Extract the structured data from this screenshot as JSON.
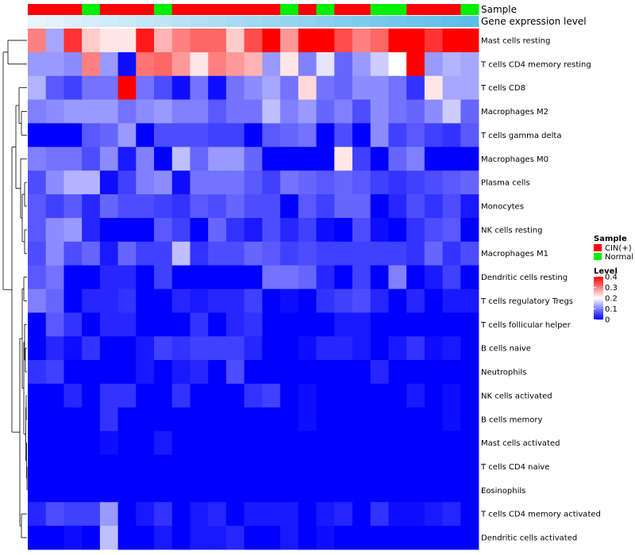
{
  "chart_data": {
    "type": "heatmap",
    "title": "",
    "annotation_labels": [
      "Sample",
      "Gene expression level"
    ],
    "sample_groups": [
      "CIN(+)",
      "CIN(+)",
      "CIN(+)",
      "Normal",
      "CIN(+)",
      "CIN(+)",
      "CIN(+)",
      "Normal",
      "CIN(+)",
      "CIN(+)",
      "CIN(+)",
      "CIN(+)",
      "CIN(+)",
      "CIN(+)",
      "Normal",
      "CIN(+)",
      "Normal",
      "CIN(+)",
      "CIN(+)",
      "Normal",
      "Normal",
      "CIN(+)",
      "CIN(+)",
      "CIN(+)",
      "Normal"
    ],
    "expression_level": [
      0.01,
      0.02,
      0.03,
      0.04,
      0.05,
      0.06,
      0.07,
      0.08,
      0.09,
      0.1,
      0.11,
      0.12,
      0.13,
      0.14,
      0.15,
      0.16,
      0.17,
      0.18,
      0.19,
      0.2,
      0.21,
      0.22,
      0.23,
      0.24,
      0.25
    ],
    "rows": [
      "Mast cells resting",
      "T cells CD4 memory resting",
      "T cells CD8",
      "Macrophages M2",
      "T cells gamma delta",
      "Macrophages M0",
      "Plasma cells",
      "Monocytes",
      "NK cells resting",
      "Macrophages M1",
      "Dendritic cells resting",
      "T cells regulatory  Tregs",
      "T cells follicular helper",
      "B cells naive",
      "Neutrophils",
      "NK cells activated",
      "B cells memory",
      "Mast cells activated",
      "T cells CD4 naive",
      "Eosinophils",
      "T cells CD4 memory activated",
      "Dendritic cells activated"
    ],
    "values": [
      [
        0.3,
        0.13,
        0.36,
        0.24,
        0.22,
        0.22,
        0.38,
        0.26,
        0.3,
        0.32,
        0.32,
        0.24,
        0.34,
        0.4,
        0.28,
        0.4,
        0.4,
        0.34,
        0.3,
        0.32,
        0.4,
        0.4,
        0.36,
        0.4,
        0.4
      ],
      [
        0.12,
        0.12,
        0.11,
        0.3,
        0.12,
        0.01,
        0.31,
        0.32,
        0.28,
        0.22,
        0.3,
        0.28,
        0.26,
        0.12,
        0.22,
        0.1,
        0.18,
        0.08,
        0.12,
        0.16,
        0.2,
        0.4,
        0.12,
        0.14,
        0.13
      ],
      [
        0.14,
        0.07,
        0.05,
        0.09,
        0.09,
        0.4,
        0.09,
        0.06,
        0.01,
        0.09,
        0.01,
        0.09,
        0.11,
        0.13,
        0.09,
        0.23,
        0.09,
        0.08,
        0.11,
        0.11,
        0.09,
        0.04,
        0.22,
        0.13,
        0.13
      ],
      [
        0.1,
        0.11,
        0.12,
        0.12,
        0.12,
        0.09,
        0.11,
        0.12,
        0.1,
        0.1,
        0.07,
        0.09,
        0.09,
        0.15,
        0.1,
        0.12,
        0.08,
        0.1,
        0.06,
        0.11,
        0.09,
        0.08,
        0.11,
        0.16,
        0.08
      ],
      [
        0.0,
        0.0,
        0.0,
        0.07,
        0.08,
        0.12,
        0.0,
        0.06,
        0.06,
        0.06,
        0.05,
        0.05,
        0.0,
        0.07,
        0.08,
        0.09,
        0.0,
        0.06,
        0.0,
        0.11,
        0.05,
        0.07,
        0.05,
        0.04,
        0.07
      ],
      [
        0.1,
        0.09,
        0.09,
        0.06,
        0.11,
        0.02,
        0.1,
        0.0,
        0.15,
        0.08,
        0.12,
        0.12,
        0.08,
        0.0,
        0.0,
        0.0,
        0.0,
        0.22,
        0.05,
        0.0,
        0.08,
        0.1,
        0.0,
        0.0,
        0.0
      ],
      [
        0.06,
        0.11,
        0.14,
        0.14,
        0.01,
        0.05,
        0.1,
        0.11,
        0.01,
        0.09,
        0.09,
        0.09,
        0.07,
        0.05,
        0.09,
        0.08,
        0.07,
        0.08,
        0.07,
        0.05,
        0.04,
        0.05,
        0.06,
        0.07,
        0.08
      ],
      [
        0.07,
        0.05,
        0.07,
        0.03,
        0.08,
        0.06,
        0.06,
        0.05,
        0.04,
        0.07,
        0.06,
        0.08,
        0.06,
        0.06,
        0.0,
        0.07,
        0.05,
        0.08,
        0.08,
        0.0,
        0.03,
        0.06,
        0.04,
        0.06,
        0.02
      ],
      [
        0.07,
        0.11,
        0.12,
        0.03,
        0.0,
        0.0,
        0.0,
        0.07,
        0.05,
        0.0,
        0.08,
        0.04,
        0.02,
        0.06,
        0.03,
        0.05,
        0.01,
        0.0,
        0.06,
        0.01,
        0.0,
        0.04,
        0.06,
        0.07,
        0.0
      ],
      [
        0.06,
        0.11,
        0.06,
        0.08,
        0.02,
        0.08,
        0.05,
        0.05,
        0.15,
        0.04,
        0.06,
        0.06,
        0.08,
        0.07,
        0.05,
        0.06,
        0.05,
        0.05,
        0.05,
        0.05,
        0.05,
        0.04,
        0.08,
        0.04,
        0.06
      ],
      [
        0.07,
        0.09,
        0.0,
        0.0,
        0.03,
        0.03,
        0.0,
        0.05,
        0.0,
        0.0,
        0.0,
        0.0,
        0.0,
        0.09,
        0.09,
        0.08,
        0.03,
        0.0,
        0.05,
        0.0,
        0.1,
        0.0,
        0.02,
        0.05,
        0.0
      ],
      [
        0.1,
        0.08,
        0.0,
        0.03,
        0.03,
        0.04,
        0.0,
        0.0,
        0.03,
        0.02,
        0.03,
        0.03,
        0.05,
        0.0,
        0.01,
        0.0,
        0.04,
        0.05,
        0.06,
        0.03,
        0.0,
        0.03,
        0.0,
        0.02,
        0.02
      ],
      [
        0.0,
        0.07,
        0.04,
        0.0,
        0.03,
        0.03,
        0.0,
        0.0,
        0.0,
        0.04,
        0.0,
        0.03,
        0.04,
        0.0,
        0.0,
        0.0,
        0.0,
        0.02,
        0.02,
        0.0,
        0.0,
        0.0,
        0.0,
        0.0,
        0.0
      ],
      [
        0.0,
        0.03,
        0.01,
        0.04,
        0.0,
        0.0,
        0.02,
        0.05,
        0.04,
        0.05,
        0.05,
        0.05,
        0.03,
        0.0,
        0.0,
        0.01,
        0.03,
        0.03,
        0.02,
        0.0,
        0.02,
        0.04,
        0.01,
        0.02,
        0.0
      ],
      [
        0.04,
        0.05,
        0.0,
        0.0,
        0.0,
        0.0,
        0.02,
        0.0,
        0.02,
        0.03,
        0.0,
        0.06,
        0.0,
        0.0,
        0.0,
        0.0,
        0.0,
        0.0,
        0.0,
        0.03,
        0.0,
        0.0,
        0.0,
        0.0,
        0.0
      ],
      [
        0.0,
        0.0,
        0.03,
        0.0,
        0.04,
        0.04,
        0.0,
        0.0,
        0.04,
        0.0,
        0.0,
        0.0,
        0.04,
        0.05,
        0.0,
        0.01,
        0.0,
        0.0,
        0.0,
        0.0,
        0.0,
        0.02,
        0.0,
        0.01,
        0.0
      ],
      [
        0.0,
        0.0,
        0.0,
        0.0,
        0.04,
        0.0,
        0.0,
        0.0,
        0.0,
        0.0,
        0.0,
        0.0,
        0.0,
        0.0,
        0.0,
        0.01,
        0.0,
        0.0,
        0.0,
        0.0,
        0.0,
        0.0,
        0.0,
        0.01,
        0.0
      ],
      [
        0.0,
        0.0,
        0.0,
        0.0,
        0.01,
        0.0,
        0.0,
        0.02,
        0.0,
        0.0,
        0.0,
        0.0,
        0.0,
        0.0,
        0.0,
        0.0,
        0.0,
        0.0,
        0.0,
        0.0,
        0.0,
        0.0,
        0.0,
        0.0,
        0.0
      ],
      [
        0.0,
        0.0,
        0.0,
        0.0,
        0.0,
        0.0,
        0.0,
        0.0,
        0.0,
        0.0,
        0.0,
        0.0,
        0.0,
        0.0,
        0.0,
        0.0,
        0.0,
        0.0,
        0.0,
        0.0,
        0.0,
        0.0,
        0.0,
        0.0,
        0.0
      ],
      [
        0.0,
        0.0,
        0.0,
        0.0,
        0.0,
        0.0,
        0.0,
        0.0,
        0.0,
        0.0,
        0.0,
        0.0,
        0.0,
        0.0,
        0.0,
        0.0,
        0.0,
        0.0,
        0.0,
        0.0,
        0.0,
        0.0,
        0.0,
        0.0,
        0.0
      ],
      [
        0.03,
        0.06,
        0.05,
        0.05,
        0.12,
        0.0,
        0.02,
        0.04,
        0.0,
        0.02,
        0.03,
        0.0,
        0.02,
        0.02,
        0.02,
        0.0,
        0.02,
        0.03,
        0.0,
        0.04,
        0.01,
        0.01,
        0.02,
        0.03,
        0.0
      ],
      [
        0.0,
        0.0,
        0.01,
        0.0,
        0.15,
        0.0,
        0.0,
        0.02,
        0.0,
        0.02,
        0.02,
        0.03,
        0.0,
        0.0,
        0.02,
        0.0,
        0.01,
        0.0,
        0.0,
        0.0,
        0.0,
        0.0,
        0.0,
        0.0,
        0.0
      ]
    ],
    "legend": {
      "sample_title": "Sample",
      "sample_entries": [
        {
          "label": "CIN(+)",
          "color": "#ff0000"
        },
        {
          "label": "Normal",
          "color": "#00ee00"
        }
      ],
      "level_title": "Level",
      "level_ticks": [
        {
          "label": "0.4",
          "value": 0.4
        },
        {
          "label": "0.3",
          "value": 0.3
        },
        {
          "label": "0.2",
          "value": 0.2
        },
        {
          "label": "0.1",
          "value": 0.1
        },
        {
          "label": "0",
          "value": 0
        }
      ],
      "level_range": [
        0,
        0.4
      ]
    },
    "colors": {
      "low": "#0000ff",
      "mid": "#ffffff",
      "high": "#ff0000",
      "expr_low": "#e8f4fb",
      "expr_high": "#5bbde8",
      "dendro": "#000000"
    }
  }
}
